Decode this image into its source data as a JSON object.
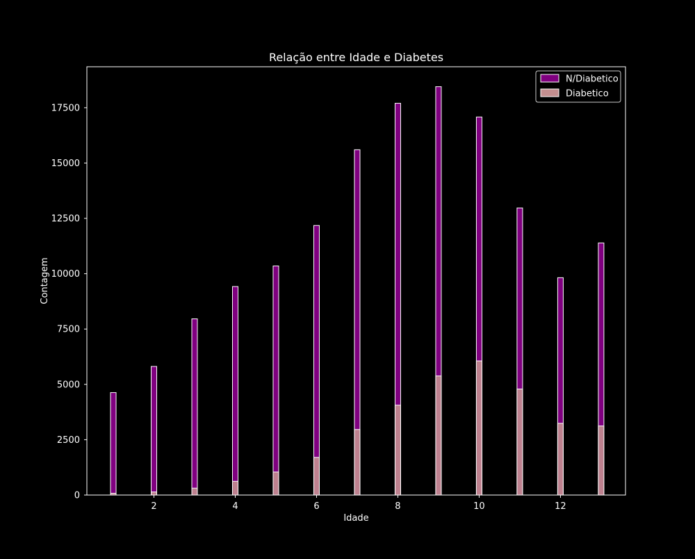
{
  "chart_data": {
    "type": "bar",
    "title": "Relação entre Idade e Diabetes",
    "xlabel": "Idade",
    "ylabel": "Contagem",
    "xlim": [
      0.35,
      13.6
    ],
    "ylim": [
      0,
      19350
    ],
    "xticks": [
      2,
      4,
      6,
      8,
      10,
      12
    ],
    "yticks": [
      0,
      2500,
      5000,
      7500,
      10000,
      12500,
      15000,
      17500
    ],
    "grid": false,
    "legend_position": "top-right",
    "series": [
      {
        "name": "N/Diabetico",
        "color": "#800080",
        "edge_color": "#ffffff",
        "points": [
          {
            "x": 1,
            "value": 4630
          },
          {
            "x": 2,
            "value": 5810
          },
          {
            "x": 3,
            "value": 7960
          },
          {
            "x": 4,
            "value": 9420
          },
          {
            "x": 5,
            "value": 10350
          },
          {
            "x": 6,
            "value": 12180
          },
          {
            "x": 7,
            "value": 15600
          },
          {
            "x": 8,
            "value": 17700
          },
          {
            "x": 9,
            "value": 18450
          },
          {
            "x": 10,
            "value": 17080
          },
          {
            "x": 11,
            "value": 12970
          },
          {
            "x": 12,
            "value": 9820
          },
          {
            "x": 13,
            "value": 11390
          }
        ]
      },
      {
        "name": "Diabetico",
        "color": "#c48f90",
        "edge_color": "#ffffff",
        "points": [
          {
            "x": 1,
            "value": 80
          },
          {
            "x": 2,
            "value": 140
          },
          {
            "x": 3,
            "value": 310
          },
          {
            "x": 4,
            "value": 620
          },
          {
            "x": 5,
            "value": 1040
          },
          {
            "x": 6,
            "value": 1700
          },
          {
            "x": 7,
            "value": 2960
          },
          {
            "x": 8,
            "value": 4060
          },
          {
            "x": 9,
            "value": 5380
          },
          {
            "x": 10,
            "value": 6060
          },
          {
            "x": 11,
            "value": 4790
          },
          {
            "x": 12,
            "value": 3240
          },
          {
            "x": 13,
            "value": 3120
          }
        ]
      }
    ]
  }
}
